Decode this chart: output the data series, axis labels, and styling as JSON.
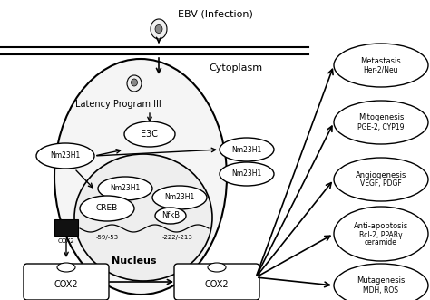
{
  "title": "EBV (Infection)",
  "cytoplasm_label": "Cytoplasm",
  "nucleus_label": "Nucleus",
  "latency_label": "Latency Program III",
  "bg_color": "#ffffff",
  "line_color": "#000000",
  "fill_color": "#ffffff",
  "fig_w": 4.74,
  "fig_h": 3.31,
  "outcomes": [
    {
      "line1": "Metastasis",
      "line2": "Her-2/Neu"
    },
    {
      "line1": "Mitogenesis",
      "line2": "PGE-2, CYP19"
    },
    {
      "line1": "Angiogenesis",
      "line2": "VEGF, PDGF"
    },
    {
      "line1": "Anti-apoptosis",
      "line2": "Bcl-2, PPARγ",
      "line3": "ceramide"
    },
    {
      "line1": "Mutagenesis",
      "line2": "MDH, ROS"
    }
  ]
}
